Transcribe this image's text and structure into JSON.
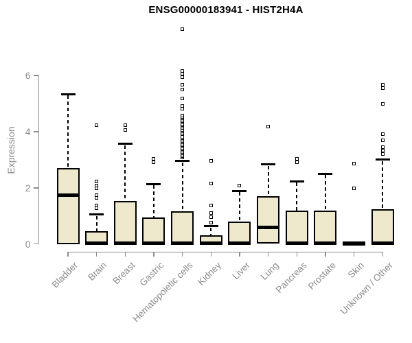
{
  "colors": {
    "box_fill": "#EEE8CD",
    "box_border": "#000000",
    "axis_text": "#8a8a8a",
    "axis_line": "#8a8a8a",
    "title_text": "#000000"
  },
  "chart_data": {
    "type": "boxplot",
    "title": "ENSG00000183941 - HIST2H4A",
    "xlabel": "",
    "ylabel": "Expression",
    "ylim": [
      0,
      6
    ],
    "yticks": [
      0,
      2,
      4,
      6
    ],
    "grid": false,
    "legend": false,
    "categories": [
      "Bladder",
      "Brain",
      "Breast",
      "Gastric",
      "Hematopoietic cells",
      "Kidney",
      "Liver",
      "Lung",
      "Pancreas",
      "Prostate",
      "Skin",
      "Unknown / Other"
    ],
    "series": [
      {
        "name": "Bladder",
        "q1": 0,
        "median": 1.73,
        "q3": 2.7,
        "whisker_low": 0,
        "whisker_high": 5.33,
        "outliers": []
      },
      {
        "name": "Brain",
        "q1": 0,
        "median": 0.04,
        "q3": 0.46,
        "whisker_low": 0,
        "whisker_high": 1.05,
        "outliers": [
          1.28,
          1.38,
          1.65,
          1.75,
          1.98,
          2.08,
          2.22,
          4.22
        ]
      },
      {
        "name": "Breast",
        "q1": 0,
        "median": 0.04,
        "q3": 1.52,
        "whisker_low": 0,
        "whisker_high": 3.56,
        "outliers": [
          4.05,
          4.24
        ]
      },
      {
        "name": "Gastric",
        "q1": 0,
        "median": 0.04,
        "q3": 0.95,
        "whisker_low": 0,
        "whisker_high": 2.13,
        "outliers": [
          2.91,
          3.03
        ]
      },
      {
        "name": "Hematopoietic cells",
        "q1": 0,
        "median": 0.04,
        "q3": 1.16,
        "whisker_low": 0,
        "whisker_high": 2.95,
        "outliers": [
          3.07,
          3.12,
          3.17,
          3.22,
          3.27,
          3.32,
          3.37,
          3.42,
          3.47,
          3.52,
          3.57,
          3.62,
          3.67,
          3.72,
          3.77,
          3.82,
          3.92,
          3.97,
          4.02,
          4.07,
          4.12,
          4.17,
          4.22,
          4.27,
          4.32,
          4.37,
          4.42,
          4.47,
          4.52,
          4.57,
          4.82,
          4.92,
          5.19,
          5.49,
          5.67,
          5.93,
          6.07,
          6.16,
          7.65
        ]
      },
      {
        "name": "Kidney",
        "q1": 0,
        "median": 0.04,
        "q3": 0.32,
        "whisker_low": 0,
        "whisker_high": 0.63,
        "outliers": [
          0.77,
          0.95,
          1.1,
          1.38,
          2.15,
          2.97
        ]
      },
      {
        "name": "Liver",
        "q1": 0,
        "median": 0.04,
        "q3": 0.79,
        "whisker_low": 0,
        "whisker_high": 1.89,
        "outliers": [
          2.07
        ]
      },
      {
        "name": "Lung",
        "q1": 0.02,
        "median": 0.59,
        "q3": 1.71,
        "whisker_low": 0.02,
        "whisker_high": 2.83,
        "outliers": [
          4.19
        ]
      },
      {
        "name": "Pancreas",
        "q1": 0,
        "median": 0.04,
        "q3": 1.2,
        "whisker_low": 0,
        "whisker_high": 2.23,
        "outliers": [
          2.91,
          3.03
        ]
      },
      {
        "name": "Prostate",
        "q1": 0,
        "median": 0.04,
        "q3": 1.2,
        "whisker_low": 0,
        "whisker_high": 2.5,
        "outliers": []
      },
      {
        "name": "Skin",
        "q1": 0,
        "median": 0.03,
        "q3": 0.05,
        "whisker_low": 0,
        "whisker_high": 0.05,
        "outliers": [
          1.99,
          2.85
        ]
      },
      {
        "name": "Unknown / Other",
        "q1": 0,
        "median": 0.04,
        "q3": 1.23,
        "whisker_low": 0,
        "whisker_high": 3.0,
        "outliers": [
          3.2,
          3.32,
          3.44,
          3.7,
          3.92,
          4.98,
          5.56,
          5.66
        ]
      }
    ]
  }
}
